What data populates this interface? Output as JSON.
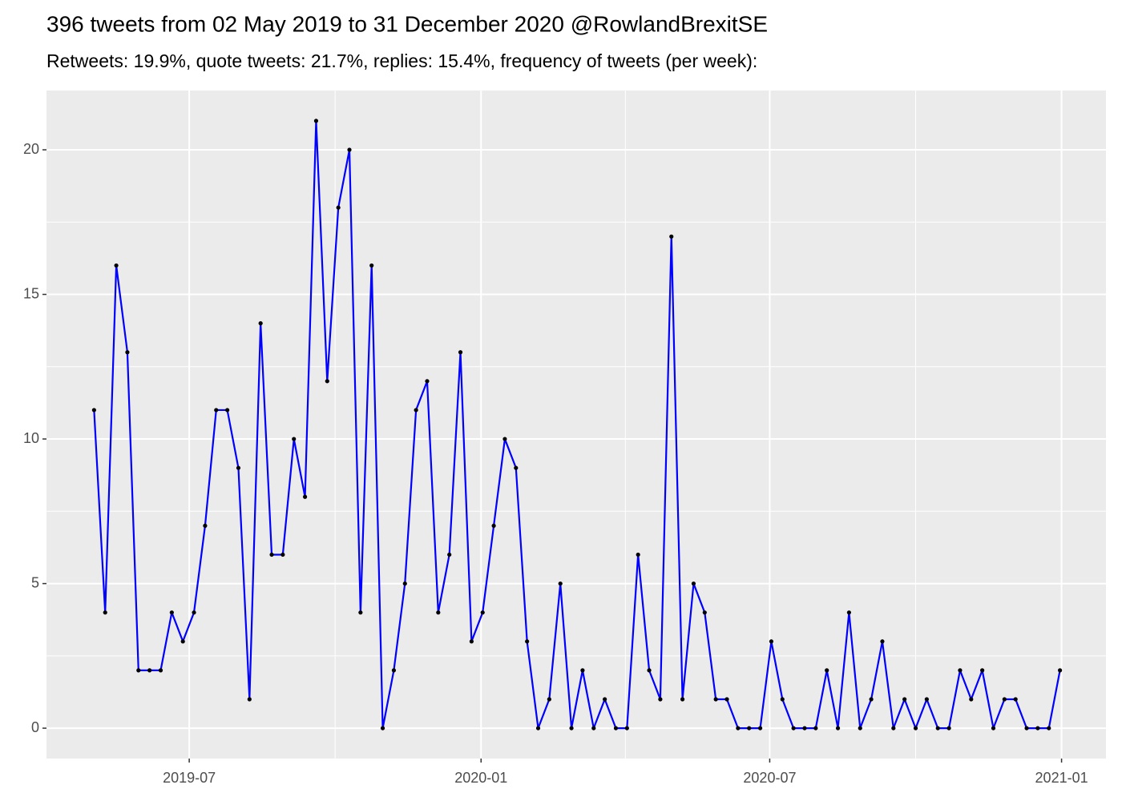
{
  "chart_data": {
    "type": "line",
    "title": "396 tweets from 02 May 2019 to 31 December 2020 @RowlandBrexitSE",
    "subtitle": "Retweets: 19.9%, quote tweets: 21.7%, replies: 15.4%, frequency of tweets (per week):",
    "x": [
      -60,
      -53,
      -46,
      -39,
      -32,
      -25,
      -18,
      -11,
      -4,
      3,
      10,
      17,
      24,
      31,
      38,
      45,
      52,
      59,
      66,
      73,
      80,
      87,
      94,
      101,
      108,
      115,
      122,
      129,
      136,
      143,
      150,
      157,
      164,
      171,
      178,
      185,
      192,
      199,
      206,
      213,
      220,
      227,
      234,
      241,
      248,
      255,
      262,
      269,
      276,
      283,
      290,
      297,
      304,
      311,
      318,
      325,
      332,
      339,
      346,
      353,
      360,
      367,
      374,
      381,
      388,
      395,
      402,
      409,
      416,
      423,
      430,
      437,
      444,
      451,
      458,
      465,
      472,
      479,
      486,
      493,
      500,
      507,
      514,
      521,
      528,
      535,
      542,
      549
    ],
    "series": [
      {
        "color": "#0000ff",
        "point_color": "#000000",
        "values": [
          11,
          4,
          16,
          13,
          2,
          2,
          2,
          4,
          3,
          4,
          7,
          11,
          11,
          9,
          1,
          14,
          6,
          6,
          10,
          8,
          21,
          12,
          18,
          20,
          4,
          16,
          0,
          2,
          5,
          11,
          12,
          4,
          6,
          13,
          3,
          4,
          7,
          10,
          9,
          3,
          0,
          1,
          5,
          0,
          2,
          0,
          1,
          0,
          0,
          6,
          2,
          1,
          17,
          1,
          5,
          4,
          1,
          1,
          0,
          0,
          0,
          3,
          1,
          0,
          0,
          0,
          2,
          0,
          4,
          0,
          1,
          3,
          0,
          1,
          0,
          1,
          0,
          0,
          2,
          1,
          2,
          0,
          1,
          1,
          0,
          0,
          0,
          2
        ]
      }
    ],
    "xlim": [
      -90,
      578
    ],
    "xticks": [
      {
        "value": 0,
        "label": "2019-07"
      },
      {
        "value": 184,
        "label": "2020-01"
      },
      {
        "value": 366,
        "label": "2020-07"
      },
      {
        "value": 550,
        "label": "2021-01"
      }
    ],
    "ylim": [
      -1.05,
      22.05
    ],
    "yticks": [
      0,
      5,
      10,
      15,
      20
    ],
    "grid": true,
    "panel_color": "#ebebeb"
  }
}
